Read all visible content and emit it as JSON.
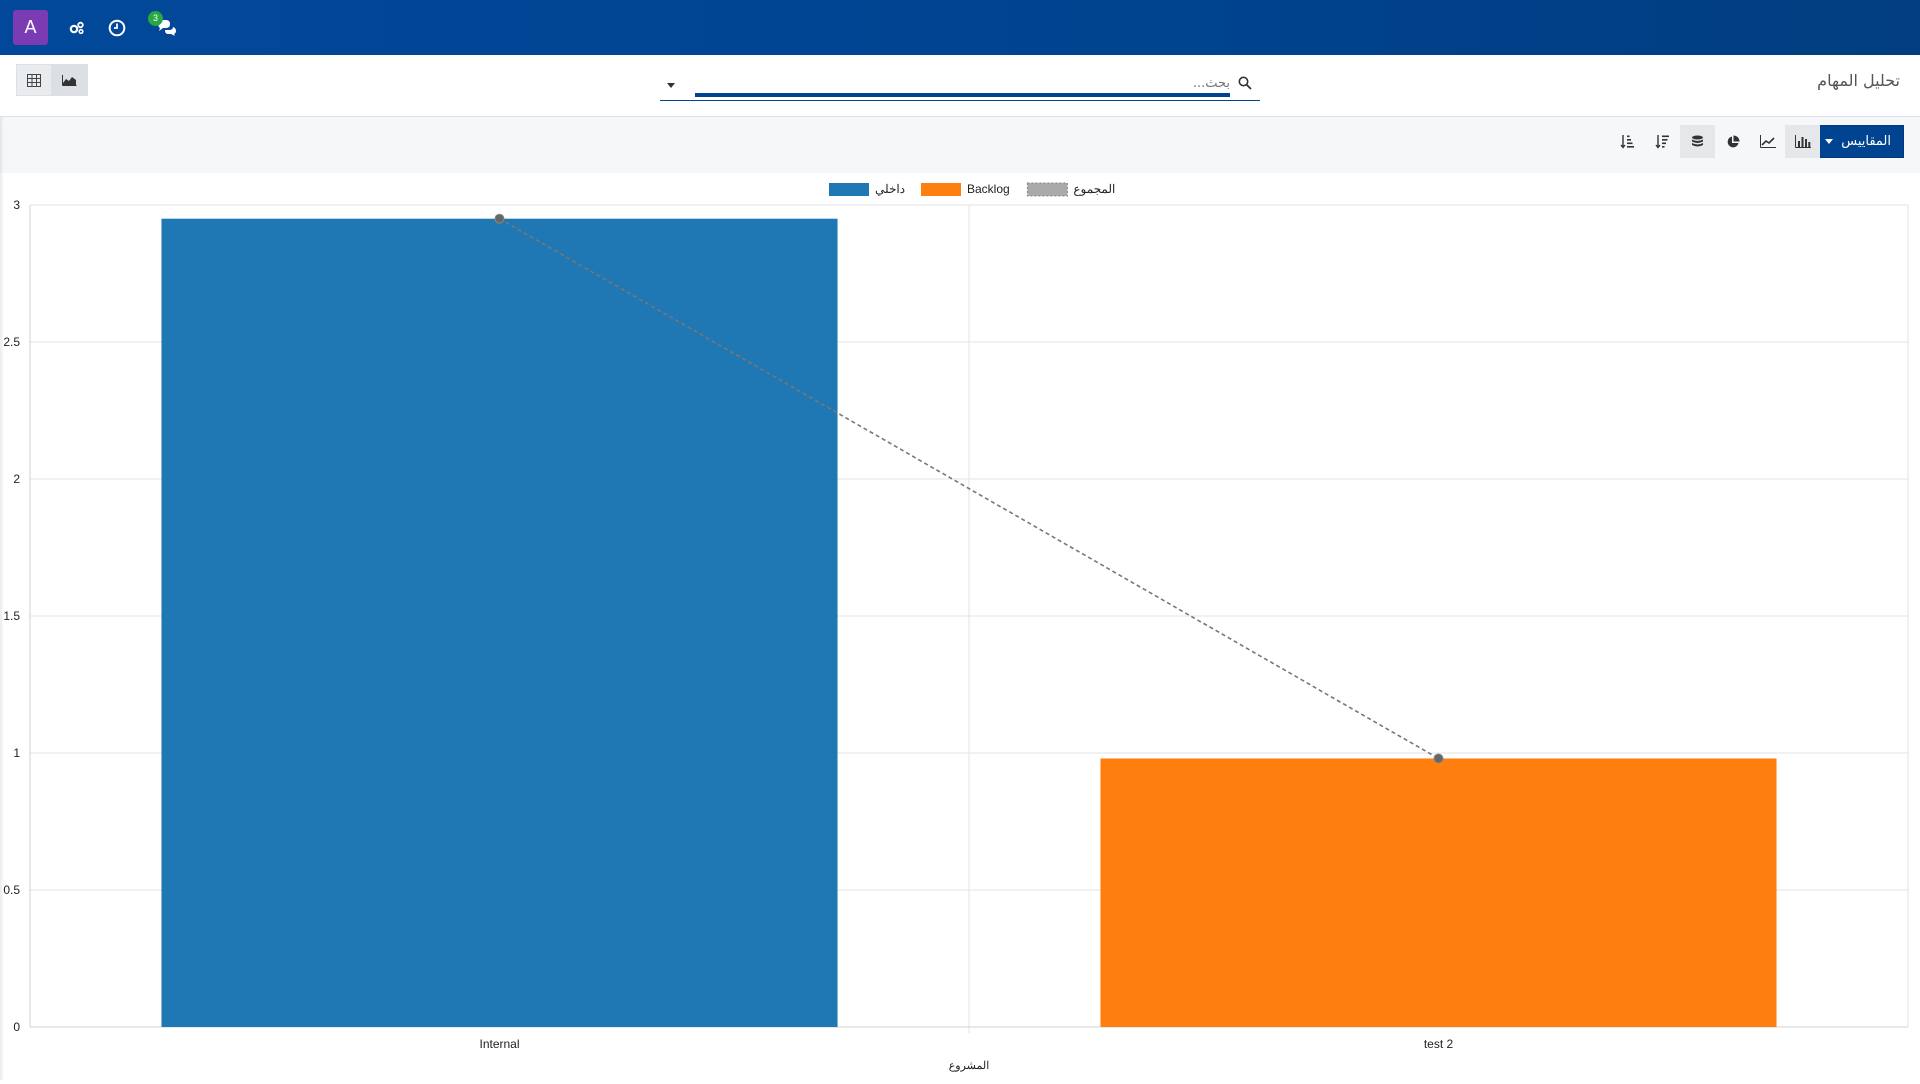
{
  "navbar": {
    "avatar_letter": "A",
    "icons": [
      "settings-gears-icon",
      "clock-icon",
      "chat-icon"
    ],
    "messages_badge": "3",
    "background": "#004491"
  },
  "control_panel": {
    "title": "تحليل المهام",
    "search_placeholder": "بحث...",
    "views": [
      "table-view",
      "graph-view"
    ]
  },
  "toolbar": {
    "measures_label": "المقاييس",
    "buttons": [
      "bar-chart-icon",
      "line-chart-icon",
      "pie-chart-icon",
      "stacked-icon",
      "sort-desc-icon",
      "sort-asc-icon"
    ],
    "accent": "#004491"
  },
  "chart_data": {
    "type": "bar",
    "categories": [
      "Internal",
      "test 2"
    ],
    "series": [
      {
        "name": "داخلي",
        "values": [
          2.95,
          0
        ],
        "color": "#1f77b4"
      },
      {
        "name": "Backlog",
        "values": [
          0,
          0.98
        ],
        "color": "#ff7f0e"
      }
    ],
    "sum_line": {
      "name": "المجموع",
      "values": [
        2.95,
        0.98
      ],
      "style": "dashed",
      "color": "#777777"
    },
    "xlabel": "المشروع",
    "ylabel": "",
    "ylim": [
      0,
      3
    ],
    "yticks": [
      "0",
      "0.5",
      "1",
      "1.5",
      "2",
      "2.5",
      "3"
    ],
    "grid": true,
    "legend_position": "top-center"
  }
}
